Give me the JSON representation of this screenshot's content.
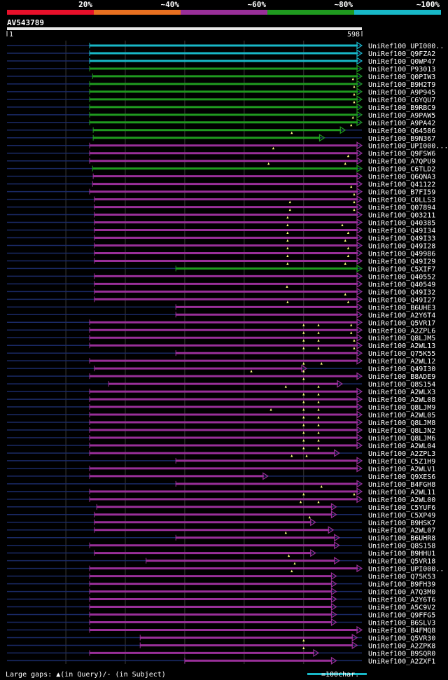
{
  "chart_data": {
    "type": "alignment-map",
    "query_id": "AV543789",
    "query_start": "1",
    "query_end": "598",
    "query_length": 598,
    "identity_scale": {
      "ticks": [
        "20%",
        "~40%",
        "~60%",
        "~80%",
        "~100%"
      ],
      "colors": [
        "#e8102a",
        "#e87020",
        "#992f99",
        "#1f9a1f",
        "#18b8c8"
      ]
    },
    "legend": {
      "gaps_text": "Large gaps: ▲(in Query)/- (in Subject)",
      "scale_text": "=100char.",
      "scale_color": "#18b8c8",
      "scale_length": 100
    },
    "hits": [
      {
        "id": "UniRef100_UPI000..",
        "start": 140,
        "end": 598,
        "color": "#18b8c8",
        "gaps": []
      },
      {
        "id": "UniRef100_Q9FZA2",
        "start": 140,
        "end": 598,
        "color": "#18b8c8",
        "gaps": []
      },
      {
        "id": "UniRef100_Q0WP47",
        "start": 140,
        "end": 598,
        "color": "#18b8c8",
        "gaps": []
      },
      {
        "id": "UniRef100_P93013",
        "start": 140,
        "end": 598,
        "color": "#1f9a1f",
        "gaps": []
      },
      {
        "id": "UniRef100_Q0PIW3",
        "start": 145,
        "end": 598,
        "color": "#1f9a1f",
        "gaps": [
          583
        ]
      },
      {
        "id": "UniRef100_B9H2T9",
        "start": 140,
        "end": 598,
        "color": "#1f9a1f",
        "gaps": [
          585
        ]
      },
      {
        "id": "UniRef100_A9P945",
        "start": 140,
        "end": 598,
        "color": "#1f9a1f",
        "gaps": [
          585
        ]
      },
      {
        "id": "UniRef100_C6YQU7",
        "start": 140,
        "end": 598,
        "color": "#1f9a1f",
        "gaps": [
          585
        ]
      },
      {
        "id": "UniRef100_B9RBC9",
        "start": 140,
        "end": 598,
        "color": "#1f9a1f",
        "gaps": []
      },
      {
        "id": "UniRef100_A9PAW5",
        "start": 140,
        "end": 598,
        "color": "#1f9a1f",
        "gaps": [
          583
        ]
      },
      {
        "id": "UniRef100_A9PA42",
        "start": 140,
        "end": 598,
        "color": "#1f9a1f",
        "gaps": [
          580
        ]
      },
      {
        "id": "UniRef100_Q64586",
        "start": 146,
        "end": 570,
        "color": "#1f9a1f",
        "gaps": [
          480
        ]
      },
      {
        "id": "UniRef100_B9N367",
        "start": 146,
        "end": 535,
        "color": "#1f9a1f",
        "gaps": []
      },
      {
        "id": "UniRef100_UPI000...",
        "start": 140,
        "end": 598,
        "color": "#992f99",
        "gaps": [
          449
        ]
      },
      {
        "id": "UniRef100_Q9FSW6",
        "start": 140,
        "end": 598,
        "color": "#992f99",
        "gaps": [
          575
        ]
      },
      {
        "id": "UniRef100_A7QPU9",
        "start": 140,
        "end": 598,
        "color": "#992f99",
        "gaps": [
          441,
          570
        ]
      },
      {
        "id": "UniRef100_C6TLD2",
        "start": 145,
        "end": 598,
        "color": "#1f9a1f",
        "gaps": []
      },
      {
        "id": "UniRef100_Q6QNA3",
        "start": 146,
        "end": 598,
        "color": "#992f99",
        "gaps": []
      },
      {
        "id": "UniRef100_Q41122",
        "start": 145,
        "end": 598,
        "color": "#992f99",
        "gaps": [
          580
        ]
      },
      {
        "id": "UniRef100_B7FI59",
        "start": 140,
        "end": 598,
        "color": "#992f99",
        "gaps": [
          585
        ]
      },
      {
        "id": "UniRef100_C0LLS3",
        "start": 148,
        "end": 598,
        "color": "#992f99",
        "gaps": [
          477,
          585
        ]
      },
      {
        "id": "UniRef100_Q07894",
        "start": 148,
        "end": 598,
        "color": "#992f99",
        "gaps": [
          477,
          585
        ]
      },
      {
        "id": "UniRef100_Q03211",
        "start": 148,
        "end": 598,
        "color": "#992f99",
        "gaps": [
          473
        ]
      },
      {
        "id": "UniRef100_Q40385",
        "start": 148,
        "end": 598,
        "color": "#992f99",
        "gaps": [
          473,
          565
        ]
      },
      {
        "id": "UniRef100_Q49I34",
        "start": 148,
        "end": 598,
        "color": "#992f99",
        "gaps": [
          473,
          575
        ]
      },
      {
        "id": "UniRef100_Q49I33",
        "start": 148,
        "end": 598,
        "color": "#992f99",
        "gaps": [
          473,
          570
        ]
      },
      {
        "id": "UniRef100_Q49I28",
        "start": 148,
        "end": 598,
        "color": "#992f99",
        "gaps": [
          473,
          575
        ]
      },
      {
        "id": "UniRef100_Q49986",
        "start": 148,
        "end": 598,
        "color": "#992f99",
        "gaps": [
          473,
          575
        ]
      },
      {
        "id": "UniRef100_Q49I29",
        "start": 148,
        "end": 598,
        "color": "#992f99",
        "gaps": [
          473,
          570
        ]
      },
      {
        "id": "UniRef100_C5XIF7",
        "start": 285,
        "end": 598,
        "color": "#1f9a1f",
        "gaps": []
      },
      {
        "id": "UniRef100_Q40552",
        "start": 148,
        "end": 598,
        "color": "#992f99",
        "gaps": []
      },
      {
        "id": "UniRef100_Q40549",
        "start": 148,
        "end": 598,
        "color": "#992f99",
        "gaps": [
          472
        ]
      },
      {
        "id": "UniRef100_Q49I32",
        "start": 148,
        "end": 598,
        "color": "#992f99",
        "gaps": [
          570
        ]
      },
      {
        "id": "UniRef100_Q49I27",
        "start": 148,
        "end": 598,
        "color": "#992f99",
        "gaps": [
          473,
          575
        ]
      },
      {
        "id": "UniRef100_B6UHE3",
        "start": 285,
        "end": 598,
        "color": "#992f99",
        "gaps": []
      },
      {
        "id": "UniRef100_A2Y6T4",
        "start": 285,
        "end": 598,
        "color": "#992f99",
        "gaps": []
      },
      {
        "id": "UniRef100_Q5VR17",
        "start": 140,
        "end": 598,
        "color": "#992f99",
        "gaps": [
          500,
          525,
          580
        ]
      },
      {
        "id": "UniRef100_A2ZPL6",
        "start": 140,
        "end": 598,
        "color": "#992f99",
        "gaps": [
          500,
          525,
          580
        ]
      },
      {
        "id": "UniRef100_Q8LJM5",
        "start": 140,
        "end": 598,
        "color": "#992f99",
        "gaps": [
          500,
          525,
          585
        ]
      },
      {
        "id": "UniRef100_A2WL13",
        "start": 140,
        "end": 598,
        "color": "#992f99",
        "gaps": [
          500,
          525,
          585
        ]
      },
      {
        "id": "UniRef100_Q75K55",
        "start": 285,
        "end": 598,
        "color": "#992f99",
        "gaps": []
      },
      {
        "id": "UniRef100_A2WL12",
        "start": 140,
        "end": 598,
        "color": "#992f99",
        "gaps": [
          500,
          530
        ]
      },
      {
        "id": "UniRef100_Q49I30",
        "start": 148,
        "end": 505,
        "color": "#992f99",
        "gaps": [
          412,
          500
        ]
      },
      {
        "id": "UniRef100_B8ADE9",
        "start": 140,
        "end": 598,
        "color": "#992f99",
        "gaps": [
          500
        ]
      },
      {
        "id": "UniRef100_Q8S154",
        "start": 172,
        "end": 565,
        "color": "#992f99",
        "gaps": [
          470,
          525
        ]
      },
      {
        "id": "UniRef100_A2WLX3",
        "start": 140,
        "end": 598,
        "color": "#992f99",
        "gaps": [
          500,
          525
        ]
      },
      {
        "id": "UniRef100_A2WL08",
        "start": 140,
        "end": 598,
        "color": "#992f99",
        "gaps": [
          500,
          525
        ]
      },
      {
        "id": "UniRef100_Q8LJM9",
        "start": 140,
        "end": 598,
        "color": "#992f99",
        "gaps": [
          445,
          500,
          525
        ]
      },
      {
        "id": "UniRef100_A2WL05",
        "start": 140,
        "end": 598,
        "color": "#992f99",
        "gaps": [
          500,
          525
        ]
      },
      {
        "id": "UniRef100_Q8LJM8",
        "start": 140,
        "end": 598,
        "color": "#992f99",
        "gaps": [
          500,
          525
        ]
      },
      {
        "id": "UniRef100_Q8LJN2",
        "start": 140,
        "end": 598,
        "color": "#992f99",
        "gaps": [
          500,
          525
        ]
      },
      {
        "id": "UniRef100_Q8LJM6",
        "start": 140,
        "end": 598,
        "color": "#992f99",
        "gaps": [
          500,
          525
        ]
      },
      {
        "id": "UniRef100_A2WL04",
        "start": 140,
        "end": 598,
        "color": "#992f99",
        "gaps": [
          500,
          525
        ]
      },
      {
        "id": "UniRef100_A2ZPL3",
        "start": 140,
        "end": 560,
        "color": "#992f99",
        "gaps": [
          480,
          505
        ]
      },
      {
        "id": "UniRef100_C5Z1H9",
        "start": 285,
        "end": 598,
        "color": "#992f99",
        "gaps": []
      },
      {
        "id": "UniRef100_A2WLV1",
        "start": 140,
        "end": 598,
        "color": "#992f99",
        "gaps": []
      },
      {
        "id": "UniRef100_Q9XES6",
        "start": 140,
        "end": 440,
        "color": "#992f99",
        "gaps": []
      },
      {
        "id": "UniRef100_B4FGH8",
        "start": 285,
        "end": 598,
        "color": "#992f99",
        "gaps": [
          530
        ]
      },
      {
        "id": "UniRef100_A2WL11",
        "start": 140,
        "end": 598,
        "color": "#992f99",
        "gaps": [
          500,
          585
        ]
      },
      {
        "id": "UniRef100_A2WL00",
        "start": 140,
        "end": 598,
        "color": "#992f99",
        "gaps": [
          495,
          525
        ]
      },
      {
        "id": "UniRef100_C5YUF6",
        "start": 152,
        "end": 555,
        "color": "#992f99",
        "gaps": []
      },
      {
        "id": "UniRef100_C5XP49",
        "start": 148,
        "end": 555,
        "color": "#992f99",
        "gaps": [
          510
        ]
      },
      {
        "id": "UniRef100_B9HSK7",
        "start": 148,
        "end": 520,
        "color": "#992f99",
        "gaps": []
      },
      {
        "id": "UniRef100_A2WL07",
        "start": 148,
        "end": 550,
        "color": "#992f99",
        "gaps": [
          470
        ]
      },
      {
        "id": "UniRef100_B6UHR8",
        "start": 285,
        "end": 560,
        "color": "#992f99",
        "gaps": []
      },
      {
        "id": "UniRef100_Q8S158",
        "start": 140,
        "end": 560,
        "color": "#992f99",
        "gaps": []
      },
      {
        "id": "UniRef100_B9HHU1",
        "start": 148,
        "end": 520,
        "color": "#992f99",
        "gaps": [
          475
        ]
      },
      {
        "id": "UniRef100_Q5VR18",
        "start": 235,
        "end": 560,
        "color": "#992f99",
        "gaps": [
          485
        ]
      },
      {
        "id": "UniRef100_UPI000..",
        "start": 140,
        "end": 598,
        "color": "#992f99",
        "gaps": [
          480
        ]
      },
      {
        "id": "UniRef100_Q75K53",
        "start": 140,
        "end": 555,
        "color": "#992f99",
        "gaps": []
      },
      {
        "id": "UniRef100_B9FH39",
        "start": 140,
        "end": 555,
        "color": "#992f99",
        "gaps": []
      },
      {
        "id": "UniRef100_A7Q3M0",
        "start": 140,
        "end": 555,
        "color": "#992f99",
        "gaps": []
      },
      {
        "id": "UniRef100_A2Y6T6",
        "start": 140,
        "end": 555,
        "color": "#992f99",
        "gaps": []
      },
      {
        "id": "UniRef100_A5C9V2",
        "start": 140,
        "end": 555,
        "color": "#992f99",
        "gaps": []
      },
      {
        "id": "UniRef100_Q9FFG5",
        "start": 140,
        "end": 555,
        "color": "#992f99",
        "gaps": []
      },
      {
        "id": "UniRef100_B6SLV3",
        "start": 140,
        "end": 555,
        "color": "#992f99",
        "gaps": []
      },
      {
        "id": "UniRef100_B4FMQ8",
        "start": 140,
        "end": 598,
        "color": "#992f99",
        "gaps": []
      },
      {
        "id": "UniRef100_Q5VR30",
        "start": 225,
        "end": 590,
        "color": "#992f99",
        "gaps": [
          500
        ]
      },
      {
        "id": "UniRef100_A2ZPK8",
        "start": 225,
        "end": 590,
        "color": "#992f99",
        "gaps": [
          500
        ]
      },
      {
        "id": "UniRef100_B9SQR0",
        "start": 140,
        "end": 525,
        "color": "#992f99",
        "gaps": []
      },
      {
        "id": "UniRef100_A2ZXF1",
        "start": 300,
        "end": 555,
        "color": "#992f99",
        "gaps": []
      }
    ]
  }
}
